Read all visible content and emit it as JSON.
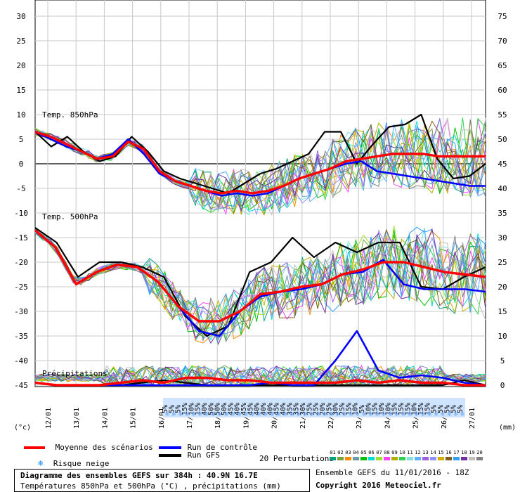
{
  "chart_data": {
    "type": "line",
    "title": "Diagramme des ensembles GEFS sur 384h : 40.9N 16.7E",
    "subtitle": "Températures 850hPa et 500hPa (°C) , précipitations (mm)",
    "left_unit": "(°c)",
    "right_unit": "(mm)",
    "left_ticks": [
      30,
      25,
      20,
      15,
      10,
      5,
      0,
      -5,
      -10,
      -15,
      -20,
      -25,
      -30,
      -35,
      -40,
      -45
    ],
    "right_ticks": [
      75,
      70,
      65,
      60,
      55,
      50,
      45,
      40,
      35,
      30,
      25,
      20,
      15,
      10,
      5,
      0
    ],
    "ylim_temp": [
      -45,
      30
    ],
    "ylim_precip": [
      0,
      75
    ],
    "x_labels": [
      "12/01",
      "13/01",
      "14/01",
      "15/01",
      "16/01",
      "17/01",
      "18/01",
      "19/01",
      "20/01",
      "21/01",
      "22/01",
      "23/01",
      "24/01",
      "25/01",
      "26/01",
      "27/01"
    ],
    "section_labels": [
      "Temp. 850hPa",
      "Temp. 500hPa",
      "Précipitations"
    ],
    "snow_risk": [
      "5%",
      "5%",
      "5%",
      "15%",
      "10%",
      "15%",
      "40%",
      "50%",
      "50%",
      "50%",
      "45%",
      "40%",
      "45%",
      "45%",
      "40%",
      "40%",
      "40%",
      "45%",
      "40%",
      "35%",
      "35%",
      "30%",
      "25%",
      "25%",
      "20%",
      "25%",
      "30%",
      "25%",
      "15%",
      "10%",
      "5%",
      "10%",
      "15%",
      "10%",
      "10%",
      "15%",
      "15%",
      "15%",
      "10%",
      "15%",
      "15%",
      "5%",
      "5%",
      "5%",
      "5%",
      "5%"
    ],
    "t850": {
      "mean": [
        6.5,
        5.5,
        4,
        2.5,
        1,
        1.5,
        4.5,
        3,
        -1.5,
        -3.5,
        -4.5,
        -5.5,
        -6,
        -5.5,
        -6,
        -5.5,
        -4.5,
        -3,
        -2,
        -1,
        0.5,
        1,
        1.5,
        2,
        2,
        2,
        1.5,
        1.5,
        1.5,
        1.5
      ],
      "control": [
        6.5,
        5,
        3.5,
        2.5,
        1,
        2,
        5,
        2,
        -2,
        -3.5,
        -4.5,
        -5.5,
        -6.5,
        -6,
        -6.5,
        -6,
        -4.5,
        -3,
        -2,
        -1,
        0,
        0.5,
        -1.5,
        -2,
        -2.5,
        -3,
        -3.5,
        -4,
        -4.5,
        -4.5
      ],
      "gfs": [
        6.5,
        3.5,
        5.5,
        2.5,
        0.5,
        1.5,
        5.5,
        2.5,
        -1.5,
        -3,
        -4,
        -5,
        -6,
        -4,
        -2,
        -1,
        0.5,
        2,
        6.5,
        6.5,
        0,
        4,
        7.5,
        8,
        10,
        1,
        -3,
        -2.5,
        0
      ]
    },
    "t500": {
      "mean": [
        -13.5,
        -17,
        -24.5,
        -22,
        -20.5,
        -21,
        -24,
        -29,
        -32,
        -32,
        -30,
        -26.5,
        -26,
        -25,
        -24.5,
        -22.5,
        -21.5,
        -20,
        -20,
        -21,
        -22,
        -22.5,
        -23
      ],
      "control": [
        -13.5,
        -17,
        -24.5,
        -22,
        -20.5,
        -21,
        -24,
        -29,
        -34,
        -35,
        -30,
        -27,
        -26,
        -25.5,
        -24.5,
        -22.5,
        -22,
        -19.5,
        -24.5,
        -25.5,
        -25.5,
        -25.5,
        -26
      ],
      "gfs": [
        -13,
        -16,
        -23,
        -20,
        -20,
        -21,
        -23,
        -31,
        -35,
        -33,
        -22,
        -20,
        -15,
        -19,
        -16,
        -18,
        -16,
        -16,
        -25,
        -25.5,
        -23,
        -21
      ]
    },
    "precip": {
      "mean": [
        0.5,
        0,
        0,
        0,
        0.5,
        1,
        0.5,
        1.5,
        1.5,
        1,
        1,
        0.5,
        0.5,
        0.5,
        0.5,
        1,
        0.5,
        1,
        0.5,
        0.5,
        0,
        0
      ],
      "control": [
        0.5,
        0,
        0,
        0,
        0,
        0,
        0,
        0,
        0,
        0,
        0,
        0.5,
        0,
        0,
        5,
        11,
        3,
        1.5,
        2,
        1.5,
        0.5,
        0
      ],
      "gfs": [
        0.5,
        0,
        0,
        0,
        0,
        0.5,
        1,
        0.5,
        0,
        0,
        0,
        0,
        0,
        0,
        0,
        0,
        0,
        0,
        0,
        0,
        1,
        0
      ]
    },
    "legend": {
      "mean_label": "Moyenne des scénarios",
      "control_label": "Run de contrôle",
      "gfs_label": "Run GFS",
      "snow_label": "Risque neige",
      "perturb_label": "20 Perturbations",
      "perturb_numbers": [
        "01",
        "02",
        "03",
        "04",
        "05",
        "06",
        "07",
        "08",
        "09",
        "10",
        "11",
        "12",
        "13",
        "14",
        "15",
        "16",
        "17",
        "18",
        "19",
        "20"
      ],
      "perturb_colors": [
        "#00a080",
        "#7aa23c",
        "#ff8c00",
        "#6a9aa8",
        "#00c000",
        "#00dcd8",
        "#a0e030",
        "#ff40ff",
        "#b0b000",
        "#30d050",
        "#80e0e0",
        "#60b0ff",
        "#a060e0",
        "#9090ff",
        "#d0b000",
        "#806020",
        "#30a0ff",
        "#7030a0",
        "#c0c0c0",
        "#808080"
      ]
    },
    "colors": {
      "mean": "#ff0000",
      "control": "#0000ff",
      "gfs": "#000000"
    }
  },
  "footer": {
    "title": "Diagramme des ensembles GEFS sur 384h : 40.9N 16.7E",
    "subtitle": "Températures 850hPa et 500hPa (°C) , précipitations (mm)",
    "run": "Ensemble GEFS du 11/01/2016 - 18Z",
    "copyright": "Copyright 2016 Meteociel.fr"
  }
}
